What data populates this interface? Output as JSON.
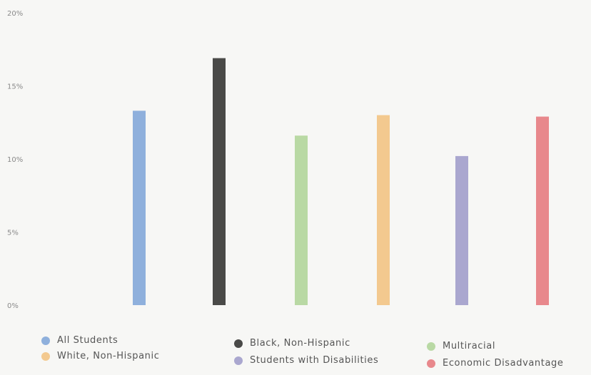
{
  "chart_data": {
    "type": "bar",
    "categories": [
      "All Students",
      "Black, Non-Hispanic",
      "Multiracial",
      "White, Non-Hispanic",
      "Students with Disabilities",
      "Economic Disadvantage"
    ],
    "values": [
      13.3,
      16.9,
      11.6,
      13.0,
      10.2,
      12.9
    ],
    "ylim": [
      0,
      20
    ],
    "yticks": [
      {
        "value": 0,
        "label": "0%"
      },
      {
        "value": 5,
        "label": "5%"
      },
      {
        "value": 10,
        "label": "10%"
      },
      {
        "value": 15,
        "label": "15%"
      },
      {
        "value": 20,
        "label": "20%"
      }
    ],
    "colors": [
      "#8fb0dc",
      "#4a4a48",
      "#b9d9a4",
      "#f3c98f",
      "#aaa7cf",
      "#e8888c"
    ],
    "grid": false,
    "legend": {
      "position": "bottom",
      "entries": [
        {
          "label": "All Students",
          "color": "#8fb0dc"
        },
        {
          "label": "Black, Non-Hispanic",
          "color": "#4a4a48"
        },
        {
          "label": "Multiracial",
          "color": "#b9d9a4"
        },
        {
          "label": "White, Non-Hispanic",
          "color": "#f3c98f"
        },
        {
          "label": "Students with Disabilities",
          "color": "#aaa7cf"
        },
        {
          "label": "Economic Disadvantage",
          "color": "#e8888c"
        }
      ]
    }
  }
}
